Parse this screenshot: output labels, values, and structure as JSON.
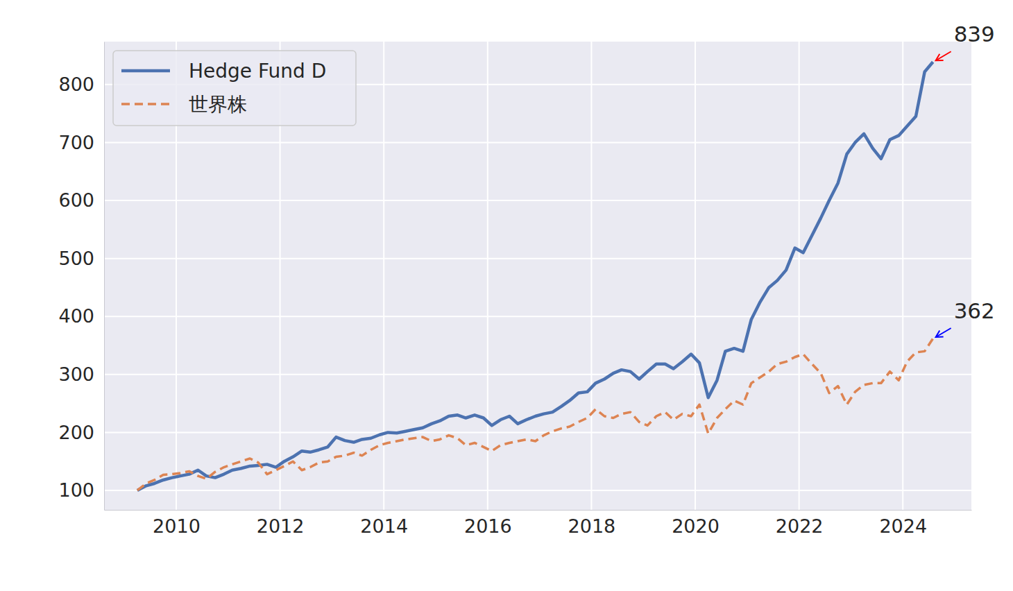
{
  "chart_data": {
    "type": "line",
    "x": [
      2009.25,
      2009.42,
      2009.58,
      2009.75,
      2009.92,
      2010.08,
      2010.25,
      2010.42,
      2010.58,
      2010.75,
      2010.92,
      2011.08,
      2011.25,
      2011.42,
      2011.58,
      2011.75,
      2011.92,
      2012.08,
      2012.25,
      2012.42,
      2012.58,
      2012.75,
      2012.92,
      2013.08,
      2013.25,
      2013.42,
      2013.58,
      2013.75,
      2013.92,
      2014.08,
      2014.25,
      2014.42,
      2014.58,
      2014.75,
      2014.92,
      2015.08,
      2015.25,
      2015.42,
      2015.58,
      2015.75,
      2015.92,
      2016.08,
      2016.25,
      2016.42,
      2016.58,
      2016.75,
      2016.92,
      2017.08,
      2017.25,
      2017.42,
      2017.58,
      2017.75,
      2017.92,
      2018.08,
      2018.25,
      2018.42,
      2018.58,
      2018.75,
      2018.92,
      2019.08,
      2019.25,
      2019.42,
      2019.58,
      2019.75,
      2019.92,
      2020.08,
      2020.25,
      2020.42,
      2020.58,
      2020.75,
      2020.92,
      2021.08,
      2021.25,
      2021.42,
      2021.58,
      2021.75,
      2021.92,
      2022.08,
      2022.25,
      2022.42,
      2022.58,
      2022.75,
      2022.92,
      2023.08,
      2023.25,
      2023.42,
      2023.58,
      2023.75,
      2023.92,
      2024.08,
      2024.25,
      2024.42,
      2024.58
    ],
    "series": [
      {
        "name": "Hedge Fund D",
        "color": "#4c72b0",
        "line_style": "solid",
        "values": [
          100,
          108,
          112,
          118,
          122,
          125,
          128,
          135,
          125,
          122,
          128,
          135,
          138,
          142,
          143,
          145,
          140,
          150,
          158,
          168,
          166,
          170,
          175,
          192,
          186,
          183,
          188,
          190,
          196,
          200,
          199,
          202,
          205,
          208,
          215,
          220,
          228,
          230,
          225,
          230,
          225,
          212,
          222,
          228,
          215,
          222,
          228,
          232,
          235,
          245,
          255,
          268,
          270,
          285,
          292,
          302,
          308,
          305,
          292,
          305,
          318,
          318,
          310,
          322,
          335,
          320,
          260,
          290,
          340,
          345,
          340,
          395,
          425,
          450,
          462,
          480,
          518,
          510,
          540,
          570,
          600,
          630,
          680,
          700,
          715,
          690,
          672,
          705,
          712,
          728,
          745,
          822,
          839
        ]
      },
      {
        "name": "世界株",
        "color": "#dd8452",
        "line_style": "dashed",
        "values": [
          100,
          112,
          118,
          127,
          128,
          130,
          133,
          125,
          120,
          132,
          140,
          145,
          150,
          155,
          148,
          128,
          135,
          142,
          150,
          135,
          140,
          148,
          150,
          158,
          160,
          165,
          160,
          170,
          178,
          182,
          185,
          188,
          190,
          192,
          185,
          188,
          195,
          190,
          178,
          182,
          175,
          168,
          178,
          182,
          185,
          188,
          185,
          195,
          202,
          207,
          210,
          218,
          225,
          240,
          228,
          225,
          232,
          235,
          218,
          212,
          228,
          235,
          222,
          232,
          228,
          248,
          198,
          225,
          240,
          255,
          248,
          285,
          295,
          305,
          318,
          322,
          330,
          335,
          318,
          302,
          268,
          280,
          248,
          270,
          282,
          285,
          285,
          305,
          290,
          322,
          338,
          340,
          362
        ]
      }
    ],
    "xlim": [
      2008.61,
      2025.32
    ],
    "xticks": [
      2010,
      2012,
      2014,
      2016,
      2018,
      2020,
      2022,
      2024
    ],
    "ylim": [
      66.5,
      874
    ],
    "yticks": [
      100,
      200,
      300,
      400,
      500,
      600,
      700,
      800
    ],
    "grid": true,
    "legend": "upper left",
    "annotations": [
      {
        "text": "839",
        "x": 2024.58,
        "y": 839,
        "color": "red"
      },
      {
        "text": "362",
        "x": 2024.58,
        "y": 362,
        "color": "blue"
      }
    ]
  }
}
